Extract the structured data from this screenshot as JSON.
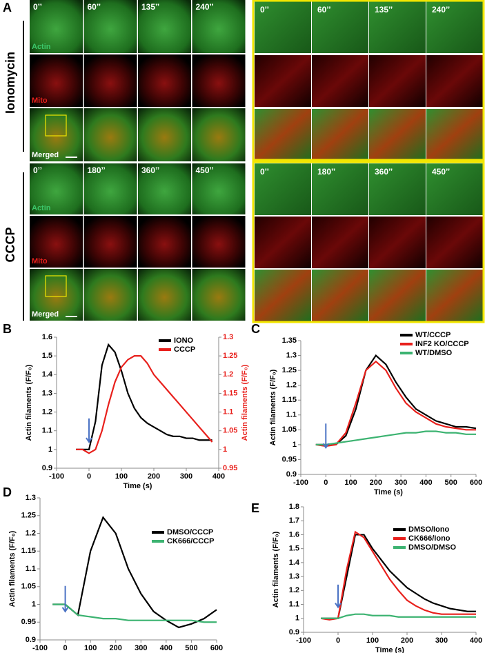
{
  "panel_a": {
    "letter": "A",
    "ionomycin": {
      "label": "Ionomycin",
      "times": [
        "0’’",
        "60’’",
        "135’’",
        "240’’"
      ],
      "channels": [
        "Actin",
        "Mito",
        "Merged"
      ]
    },
    "cccp": {
      "label": "CCCP",
      "times": [
        "0’’",
        "180’’",
        "360’’",
        "450’’"
      ],
      "channels": [
        "Actin",
        "Mito",
        "Merged"
      ]
    }
  },
  "chart_data": [
    {
      "type": "line",
      "panel": "B",
      "x_label": "Time (s)",
      "y_label": "Actin filaments (F/F₀)",
      "y2_label": "Actin filaments (F/F₀)",
      "xlim": [
        -100,
        400
      ],
      "xticks": [
        -100,
        0,
        100,
        200,
        300,
        400
      ],
      "ylim": [
        0.9,
        1.6
      ],
      "yticks": [
        0.9,
        1,
        1.1,
        1.2,
        1.3,
        1.4,
        1.5,
        1.6
      ],
      "y2lim": [
        0.95,
        1.3
      ],
      "y2ticks": [
        0.95,
        1,
        1.05,
        1.1,
        1.15,
        1.2,
        1.25,
        1.3
      ],
      "y2color": "#e8201c",
      "arrow_x": 0,
      "x": [
        -40,
        -20,
        0,
        20,
        40,
        60,
        80,
        100,
        120,
        140,
        160,
        180,
        200,
        220,
        240,
        260,
        280,
        300,
        320,
        340,
        360,
        380
      ],
      "series": [
        {
          "name": "IONO",
          "color": "#000000",
          "values": [
            1.0,
            1.0,
            1.0,
            1.15,
            1.45,
            1.56,
            1.52,
            1.42,
            1.3,
            1.22,
            1.17,
            1.14,
            1.12,
            1.1,
            1.08,
            1.07,
            1.07,
            1.06,
            1.06,
            1.05,
            1.05,
            1.05
          ]
        },
        {
          "name": "CCCP",
          "color": "#e8201c",
          "axis": "y2",
          "values": [
            1.0,
            1.0,
            0.99,
            1.0,
            1.05,
            1.12,
            1.18,
            1.22,
            1.24,
            1.25,
            1.25,
            1.23,
            1.2,
            1.18,
            1.16,
            1.14,
            1.12,
            1.1,
            1.08,
            1.06,
            1.04,
            1.02
          ]
        }
      ]
    },
    {
      "type": "line",
      "panel": "C",
      "x_label": "Time (s)",
      "y_label": "Actin filaments (F/F₀)",
      "xlim": [
        -100,
        600
      ],
      "xticks": [
        -100,
        0,
        100,
        200,
        300,
        400,
        500,
        600
      ],
      "ylim": [
        0.9,
        1.35
      ],
      "yticks": [
        0.9,
        0.95,
        1,
        1.05,
        1.1,
        1.15,
        1.2,
        1.25,
        1.3,
        1.35
      ],
      "arrow_x": 0,
      "x": [
        -40,
        0,
        40,
        80,
        120,
        160,
        200,
        240,
        280,
        320,
        360,
        400,
        440,
        480,
        520,
        560,
        600
      ],
      "series": [
        {
          "name": "WT/CCCP",
          "color": "#000000",
          "values": [
            1.0,
            1.0,
            1.0,
            1.03,
            1.12,
            1.25,
            1.3,
            1.27,
            1.21,
            1.16,
            1.12,
            1.1,
            1.08,
            1.07,
            1.06,
            1.06,
            1.055
          ]
        },
        {
          "name": "INF2 KO/CCCP",
          "color": "#e8201c",
          "values": [
            1.0,
            0.995,
            1.0,
            1.04,
            1.14,
            1.25,
            1.28,
            1.25,
            1.19,
            1.14,
            1.11,
            1.09,
            1.07,
            1.06,
            1.055,
            1.05,
            1.05
          ]
        },
        {
          "name": "WT/DMSO",
          "color": "#3cb371",
          "values": [
            1.0,
            1.0,
            1.005,
            1.01,
            1.015,
            1.02,
            1.025,
            1.03,
            1.035,
            1.04,
            1.04,
            1.045,
            1.045,
            1.04,
            1.04,
            1.035,
            1.035
          ]
        }
      ]
    },
    {
      "type": "line",
      "panel": "D",
      "x_label": "Time (s)",
      "y_label": "Actin filaments (F/F₀)",
      "xlim": [
        -100,
        600
      ],
      "xticks": [
        -100,
        0,
        100,
        200,
        300,
        400,
        500,
        600
      ],
      "ylim": [
        0.9,
        1.3
      ],
      "yticks": [
        0.9,
        0.95,
        1,
        1.05,
        1.1,
        1.15,
        1.2,
        1.25,
        1.3
      ],
      "arrow_x": 0,
      "x": [
        -50,
        0,
        50,
        100,
        150,
        200,
        250,
        300,
        350,
        400,
        450,
        500,
        550,
        600
      ],
      "series": [
        {
          "name": "DMSO/CCCP",
          "color": "#000000",
          "values": [
            1.0,
            1.0,
            0.97,
            1.15,
            1.245,
            1.2,
            1.1,
            1.03,
            0.98,
            0.955,
            0.935,
            0.945,
            0.96,
            0.985
          ]
        },
        {
          "name": "CK666/CCCP",
          "color": "#3cb371",
          "values": [
            1.0,
            1.0,
            0.97,
            0.965,
            0.96,
            0.96,
            0.955,
            0.955,
            0.955,
            0.955,
            0.955,
            0.955,
            0.95,
            0.95
          ]
        }
      ]
    },
    {
      "type": "line",
      "panel": "E",
      "x_label": "Time (s)",
      "y_label": "Actin filaments (F/F₀)",
      "xlim": [
        -100,
        400
      ],
      "xticks": [
        -100,
        0,
        100,
        200,
        300,
        400
      ],
      "ylim": [
        0.9,
        1.8
      ],
      "yticks": [
        0.9,
        1,
        1.1,
        1.2,
        1.3,
        1.4,
        1.5,
        1.6,
        1.7,
        1.8
      ],
      "arrow_x": 0,
      "x": [
        -50,
        -25,
        0,
        25,
        50,
        75,
        100,
        125,
        150,
        175,
        200,
        225,
        250,
        275,
        300,
        325,
        350,
        375,
        400
      ],
      "series": [
        {
          "name": "DMSO/Iono",
          "color": "#000000",
          "values": [
            1.0,
            1.0,
            1.0,
            1.3,
            1.6,
            1.6,
            1.5,
            1.42,
            1.34,
            1.28,
            1.22,
            1.18,
            1.14,
            1.11,
            1.09,
            1.07,
            1.06,
            1.05,
            1.05
          ]
        },
        {
          "name": "CK666/Iono",
          "color": "#e8201c",
          "values": [
            1.0,
            0.99,
            1.0,
            1.35,
            1.62,
            1.58,
            1.48,
            1.38,
            1.28,
            1.2,
            1.13,
            1.09,
            1.06,
            1.04,
            1.03,
            1.03,
            1.03,
            1.03,
            1.03
          ]
        },
        {
          "name": "DMSO/DMSO",
          "color": "#3cb371",
          "values": [
            1.0,
            1.0,
            1.0,
            1.02,
            1.03,
            1.03,
            1.02,
            1.02,
            1.02,
            1.01,
            1.01,
            1.01,
            1.01,
            1.01,
            1.01,
            1.01,
            1.01,
            1.01,
            1.01
          ]
        }
      ]
    }
  ]
}
